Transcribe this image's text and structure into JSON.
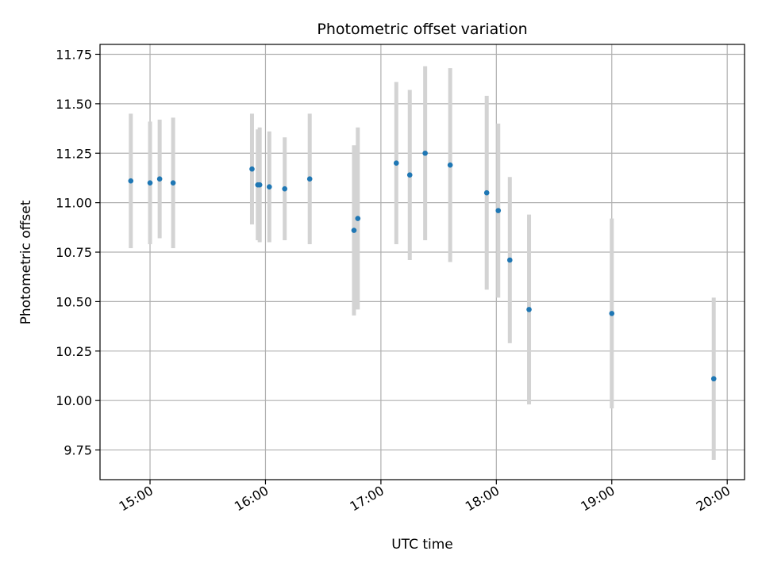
{
  "chart_data": {
    "type": "scatter",
    "title": "Photometric offset variation",
    "xlabel": "UTC time",
    "ylabel": "Photometric offset",
    "grid": true,
    "xlim": [
      "14:34",
      "20:09"
    ],
    "ylim": [
      9.6,
      11.8
    ],
    "x_ticks": [
      "15:00",
      "16:00",
      "17:00",
      "18:00",
      "19:00",
      "20:00"
    ],
    "y_ticks": [
      "9.75",
      "10.00",
      "10.25",
      "10.50",
      "10.75",
      "11.00",
      "11.25",
      "11.50",
      "11.75"
    ],
    "series": [
      {
        "color": "#1f77b4",
        "errorbar_color": "#d3d3d3",
        "points": [
          {
            "x": "14:50",
            "y": 11.11,
            "err": 0.34
          },
          {
            "x": "15:00",
            "y": 11.1,
            "err": 0.31
          },
          {
            "x": "15:05",
            "y": 11.12,
            "err": 0.3
          },
          {
            "x": "15:12",
            "y": 11.1,
            "err": 0.33
          },
          {
            "x": "15:53",
            "y": 11.17,
            "err": 0.28
          },
          {
            "x": "15:56",
            "y": 11.09,
            "err": 0.28
          },
          {
            "x": "15:57",
            "y": 11.09,
            "err": 0.29
          },
          {
            "x": "16:02",
            "y": 11.08,
            "err": 0.28
          },
          {
            "x": "16:10",
            "y": 11.07,
            "err": 0.26
          },
          {
            "x": "16:23",
            "y": 11.12,
            "err": 0.33
          },
          {
            "x": "16:46",
            "y": 10.86,
            "err": 0.43
          },
          {
            "x": "16:48",
            "y": 10.92,
            "err": 0.46
          },
          {
            "x": "17:08",
            "y": 11.2,
            "err": 0.41
          },
          {
            "x": "17:15",
            "y": 11.14,
            "err": 0.43
          },
          {
            "x": "17:23",
            "y": 11.25,
            "err": 0.44
          },
          {
            "x": "17:36",
            "y": 11.19,
            "err": 0.49
          },
          {
            "x": "17:55",
            "y": 11.05,
            "err": 0.49
          },
          {
            "x": "18:01",
            "y": 10.96,
            "err": 0.44
          },
          {
            "x": "18:07",
            "y": 10.71,
            "err": 0.42
          },
          {
            "x": "18:17",
            "y": 10.46,
            "err": 0.48
          },
          {
            "x": "19:00",
            "y": 10.44,
            "err": 0.48
          },
          {
            "x": "19:53",
            "y": 10.11,
            "err": 0.41
          }
        ]
      }
    ]
  }
}
